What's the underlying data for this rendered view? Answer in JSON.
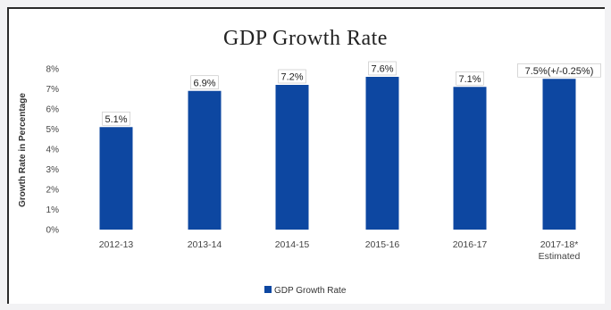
{
  "chart_data": {
    "type": "bar",
    "title": "GDP Growth Rate",
    "ylabel": "Growth Rate in Percentage",
    "xlabel": "",
    "ylim": [
      0,
      8
    ],
    "yticks": [
      "0%",
      "1%",
      "2%",
      "3%",
      "4%",
      "5%",
      "6%",
      "7%",
      "8%"
    ],
    "categories": [
      "2012-13",
      "2013-14",
      "2014-15",
      "2015-16",
      "2016-17",
      "2017-18* Estimated"
    ],
    "category_lines": [
      [
        "2012-13"
      ],
      [
        "2013-14"
      ],
      [
        "2014-15"
      ],
      [
        "2015-16"
      ],
      [
        "2016-17"
      ],
      [
        "2017-18*",
        "Estimated"
      ]
    ],
    "series": [
      {
        "name": "GDP Growth Rate",
        "values": [
          5.1,
          6.9,
          7.2,
          7.6,
          7.1,
          7.5
        ],
        "color": "#0d47a1"
      }
    ],
    "data_labels": [
      "5.1%",
      "6.9%",
      "7.2%",
      "7.6%",
      "7.1%",
      "7.5%(+/-0.25%)"
    ],
    "grid": false,
    "legend": "bottom"
  }
}
